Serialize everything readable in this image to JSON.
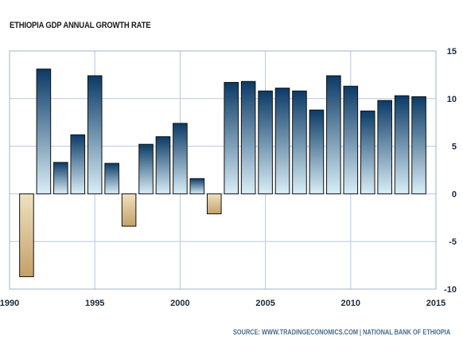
{
  "chart_data": {
    "type": "bar",
    "title": "ETHIOPIA GDP ANNUAL GROWTH RATE",
    "source": "SOURCE: WWW.TRADINGECONOMICS.COM | NATIONAL BANK OF ETHIOPIA",
    "xlabel": "",
    "ylabel": "",
    "xlim": [
      1990,
      2015
    ],
    "ylim": [
      -10,
      15
    ],
    "x_ticks": [
      1990,
      1995,
      2000,
      2005,
      2010,
      2015
    ],
    "y_ticks": [
      15,
      10,
      5,
      0,
      -5,
      -10
    ],
    "y_axis_side": "right",
    "grid": true,
    "legend": "none",
    "colors": {
      "positive_top": "#0b3a66",
      "positive_bottom": "#d9eef7",
      "negative_top": "#efe2bf",
      "negative_bottom": "#c4a06a",
      "grid": "#b9c8d9",
      "plot_border": "#9fb3c8"
    },
    "x": [
      1991,
      1992,
      1993,
      1994,
      1995,
      1996,
      1997,
      1998,
      1999,
      2000,
      2001,
      2002,
      2003,
      2004,
      2005,
      2006,
      2007,
      2008,
      2009,
      2010,
      2011,
      2012,
      2013,
      2014
    ],
    "values": [
      -8.7,
      13.1,
      3.3,
      6.2,
      12.4,
      3.2,
      -3.4,
      5.2,
      6.0,
      7.4,
      1.6,
      -2.1,
      11.7,
      11.8,
      10.8,
      11.1,
      10.8,
      8.8,
      12.4,
      11.3,
      8.7,
      9.8,
      10.3,
      10.2
    ]
  }
}
